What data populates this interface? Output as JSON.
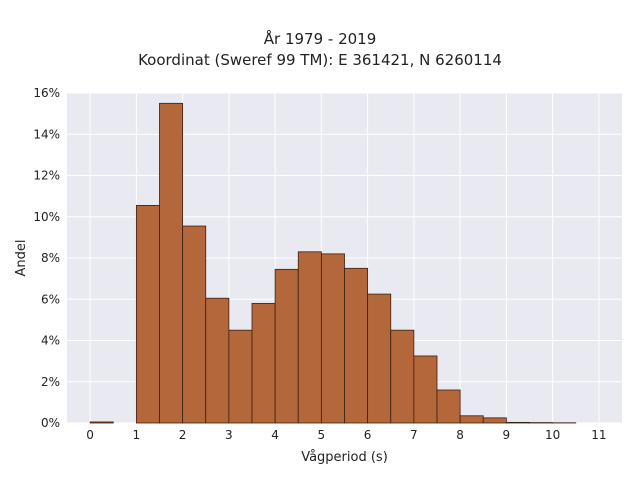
{
  "chart_data": {
    "type": "bar",
    "title_line1": "År 1979 - 2019",
    "title_line2": "Koordinat (Sweref 99 TM): E 361421, N 6260114",
    "xlabel": "Vågperiod (s)",
    "ylabel": "Andel",
    "xlim": [
      -0.5,
      11.5
    ],
    "ylim": [
      0,
      16
    ],
    "x_ticks": [
      0,
      1,
      2,
      3,
      4,
      5,
      6,
      7,
      8,
      9,
      10,
      11
    ],
    "y_ticks": [
      0,
      2,
      4,
      6,
      8,
      10,
      12,
      14,
      16
    ],
    "y_tick_labels": [
      "0%",
      "2%",
      "4%",
      "6%",
      "8%",
      "10%",
      "12%",
      "14%",
      "16%"
    ],
    "bin_width": 0.5,
    "bins": [
      {
        "x0": 0.0,
        "value": 0.05
      },
      {
        "x0": 0.5,
        "value": 0.0
      },
      {
        "x0": 1.0,
        "value": 10.55
      },
      {
        "x0": 1.5,
        "value": 15.5
      },
      {
        "x0": 2.0,
        "value": 9.55
      },
      {
        "x0": 2.5,
        "value": 6.05
      },
      {
        "x0": 3.0,
        "value": 4.5
      },
      {
        "x0": 3.5,
        "value": 5.8
      },
      {
        "x0": 4.0,
        "value": 7.45
      },
      {
        "x0": 4.5,
        "value": 8.3
      },
      {
        "x0": 5.0,
        "value": 8.2
      },
      {
        "x0": 5.5,
        "value": 7.5
      },
      {
        "x0": 6.0,
        "value": 6.25
      },
      {
        "x0": 6.5,
        "value": 4.5
      },
      {
        "x0": 7.0,
        "value": 3.25
      },
      {
        "x0": 7.5,
        "value": 1.6
      },
      {
        "x0": 8.0,
        "value": 0.35
      },
      {
        "x0": 8.5,
        "value": 0.25
      },
      {
        "x0": 9.0,
        "value": 0.03
      },
      {
        "x0": 9.5,
        "value": 0.02
      },
      {
        "x0": 10.0,
        "value": 0.01
      }
    ],
    "grid": true,
    "colors": {
      "bar_fill": "#b5673c",
      "bar_stroke": "#3a2010",
      "plot_bg": "#e8e9f1",
      "grid": "#ffffff"
    }
  }
}
